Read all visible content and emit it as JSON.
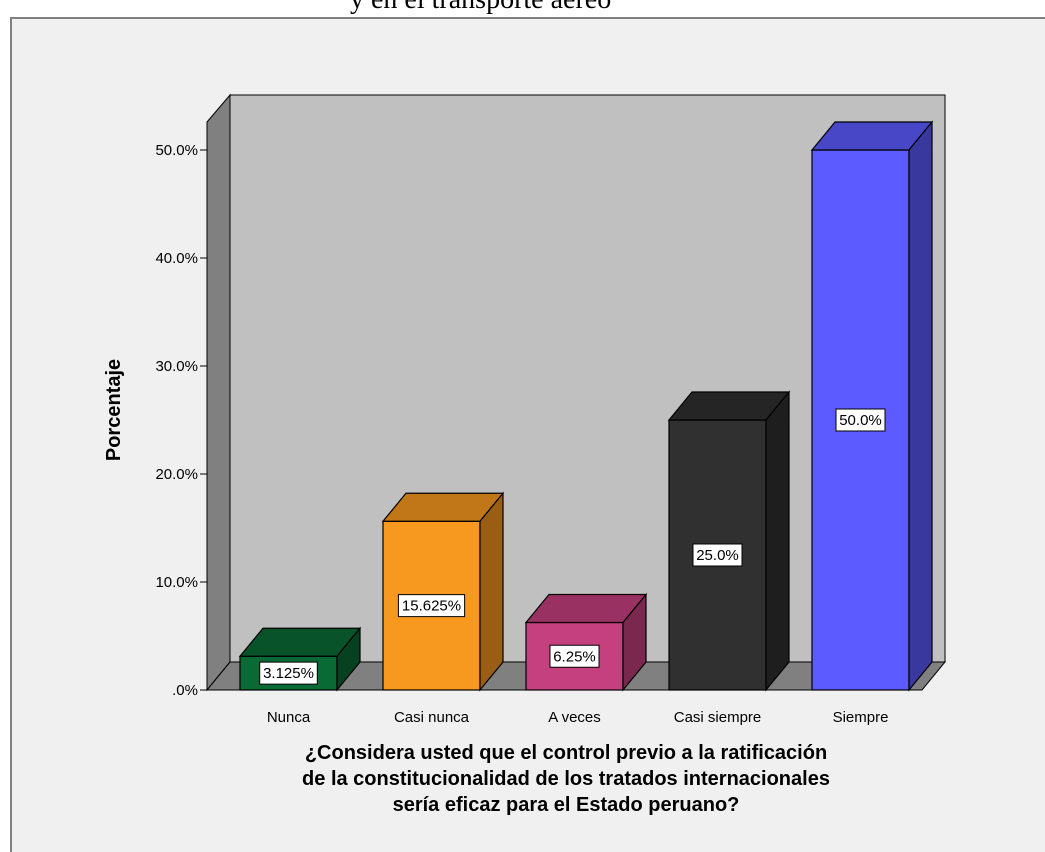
{
  "page": {
    "top_text": "y en el transporte aéreo"
  },
  "chart_data": {
    "type": "bar",
    "categories": [
      "Nunca",
      "Casi nunca",
      "A veces",
      "Casi siempre",
      "Siempre"
    ],
    "values": [
      3.125,
      15.625,
      6.25,
      25.0,
      50.0
    ],
    "value_labels": [
      "3.125%",
      "15.625%",
      "6.25%",
      "25.0%",
      "50.0%"
    ],
    "bar_colors": [
      "#0a6a35",
      "#f7981f",
      "#c4407e",
      "#303030",
      "#5b5bff"
    ],
    "ylabel": "Porcentaje",
    "xlabel_lines": [
      "¿Considera usted que el control previo a la ratificación",
      "de la constitucionalidad de los tratados internacionales",
      "sería eficaz para el Estado peruano?"
    ],
    "yticks": [
      0,
      10,
      20,
      30,
      40,
      50
    ],
    "ytick_labels": [
      ".0%",
      "10.0%",
      "20.0%",
      "30.0%",
      "40.0%",
      "50.0%"
    ],
    "ylim": [
      0,
      50
    ],
    "grid": false,
    "legend": "none",
    "three_d": true
  }
}
